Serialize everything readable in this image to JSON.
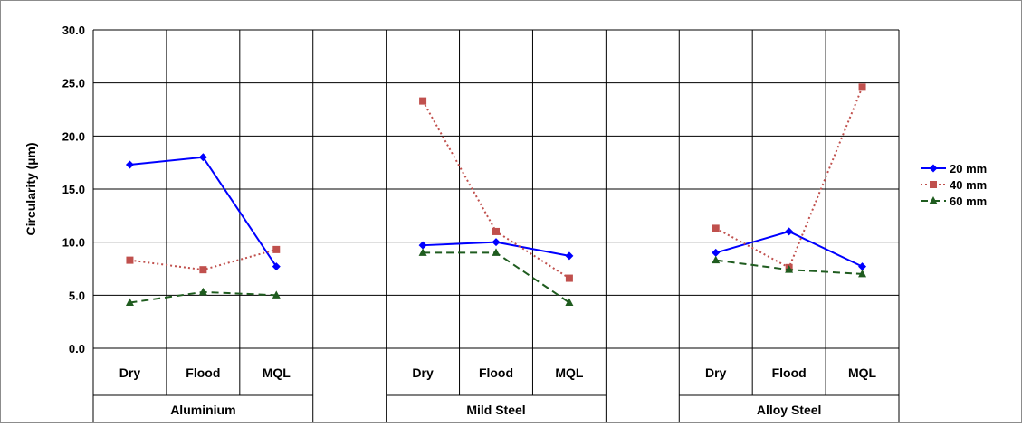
{
  "chart_data": {
    "type": "line",
    "ylabel": "Circularity (µm)",
    "ylim": [
      0,
      30
    ],
    "yticks": [
      "0.0",
      "5.0",
      "10.0",
      "15.0",
      "20.0",
      "25.0",
      "30.0"
    ],
    "grid": true,
    "legend_position": "right",
    "groups": [
      {
        "name": "Aluminium",
        "categories": [
          "Dry",
          "Flood",
          "MQL"
        ]
      },
      {
        "name": "Mild Steel",
        "categories": [
          "Dry",
          "Flood",
          "MQL"
        ]
      },
      {
        "name": "Alloy Steel",
        "categories": [
          "Dry",
          "Flood",
          "MQL"
        ]
      }
    ],
    "series": [
      {
        "name": "20 mm",
        "color": "#0000ff",
        "marker": "diamond",
        "line": "solid",
        "values": [
          [
            17.3,
            18.0,
            7.7
          ],
          [
            9.7,
            10.0,
            8.7
          ],
          [
            9.0,
            11.0,
            7.7
          ]
        ]
      },
      {
        "name": "40 mm",
        "color": "#c0504d",
        "marker": "square",
        "line": "dotted",
        "values": [
          [
            8.3,
            7.4,
            9.3
          ],
          [
            23.3,
            11.0,
            6.6
          ],
          [
            11.3,
            7.6,
            24.6
          ]
        ]
      },
      {
        "name": "60 mm",
        "color": "#1f5c1f",
        "marker": "triangle",
        "line": "dashed",
        "values": [
          [
            4.3,
            5.3,
            5.0
          ],
          [
            9.0,
            9.0,
            4.3
          ],
          [
            8.3,
            7.4,
            7.0
          ]
        ]
      }
    ]
  }
}
